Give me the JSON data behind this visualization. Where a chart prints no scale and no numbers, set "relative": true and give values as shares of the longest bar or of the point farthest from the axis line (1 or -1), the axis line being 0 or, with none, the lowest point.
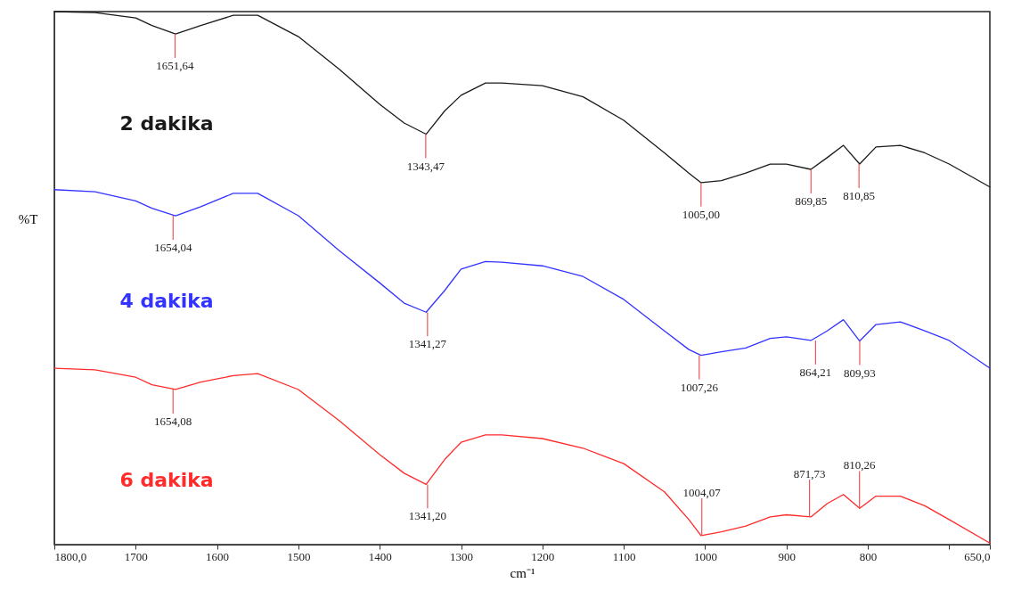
{
  "chart_data": {
    "type": "line",
    "relative": true,
    "xlabel": "cm⁻¹",
    "ylabel": "%T",
    "xlim": [
      1800,
      650
    ],
    "xticks": [
      {
        "value": 1800,
        "label": "1800,0"
      },
      1700,
      1600,
      1500,
      1400,
      1300,
      1200,
      1100,
      1000,
      900,
      800,
      {
        "value": 700,
        "label": null
      },
      {
        "value": 650,
        "label": "650,0"
      }
    ],
    "grid": false,
    "legend": false,
    "x": [
      1800,
      1750,
      1700,
      1680,
      1651,
      1620,
      1580,
      1550,
      1500,
      1450,
      1400,
      1370,
      1343,
      1320,
      1300,
      1270,
      1250,
      1200,
      1150,
      1100,
      1050,
      1020,
      1005,
      980,
      950,
      920,
      900,
      870,
      850,
      830,
      810,
      790,
      760,
      730,
      700,
      650
    ],
    "series": [
      {
        "name": "2 dakika",
        "color": "#1a1a1a",
        "values": [
          1.0,
          0.998,
          0.988,
          0.974,
          0.958,
          0.974,
          0.993,
          0.993,
          0.953,
          0.892,
          0.826,
          0.791,
          0.77,
          0.814,
          0.843,
          0.866,
          0.866,
          0.861,
          0.84,
          0.796,
          0.735,
          0.697,
          0.679,
          0.683,
          0.697,
          0.714,
          0.714,
          0.704,
          0.726,
          0.749,
          0.714,
          0.746,
          0.749,
          0.735,
          0.714,
          0.671
        ]
      },
      {
        "name": "4 dakika",
        "color": "#3333ff",
        "values": [
          0.666,
          0.662,
          0.645,
          0.631,
          0.617,
          0.634,
          0.659,
          0.659,
          0.617,
          0.552,
          0.491,
          0.453,
          0.436,
          0.477,
          0.517,
          0.531,
          0.53,
          0.523,
          0.503,
          0.46,
          0.401,
          0.366,
          0.355,
          0.362,
          0.369,
          0.387,
          0.39,
          0.383,
          0.401,
          0.422,
          0.382,
          0.413,
          0.418,
          0.401,
          0.383,
          0.331
        ]
      },
      {
        "name": "6 dakika",
        "color": "#ff2a2a",
        "values": [
          0.331,
          0.328,
          0.314,
          0.3,
          0.291,
          0.305,
          0.317,
          0.321,
          0.291,
          0.233,
          0.169,
          0.134,
          0.113,
          0.16,
          0.192,
          0.206,
          0.206,
          0.199,
          0.181,
          0.152,
          0.099,
          0.047,
          0.017,
          0.024,
          0.035,
          0.052,
          0.056,
          0.052,
          0.077,
          0.094,
          0.068,
          0.091,
          0.091,
          0.073,
          0.047,
          0.003
        ]
      }
    ],
    "annotations": [
      {
        "text": "1651,64",
        "x": 1651.64,
        "y": 0.958
      },
      {
        "text": "1343,47",
        "x": 1343.47,
        "y": 0.77
      },
      {
        "text": "1005,00",
        "x": 1005.0,
        "y": 0.679
      },
      {
        "text": "869,85",
        "x": 869.85,
        "y": 0.704
      },
      {
        "text": "810,85",
        "x": 810.85,
        "y": 0.714
      },
      {
        "text": "1654,04",
        "x": 1654.04,
        "y": 0.617
      },
      {
        "text": "1341,27",
        "x": 1341.27,
        "y": 0.436
      },
      {
        "text": "1007,26",
        "x": 1007.26,
        "y": 0.355
      },
      {
        "text": "864,21",
        "x": 864.21,
        "y": 0.383
      },
      {
        "text": "809,93",
        "x": 809.93,
        "y": 0.382
      },
      {
        "text": "1654,08",
        "x": 1654.08,
        "y": 0.291
      },
      {
        "text": "1341,20",
        "x": 1341.2,
        "y": 0.113
      },
      {
        "text": "1004,07",
        "x": 1004.07,
        "y": 0.017
      },
      {
        "text": "871,73",
        "x": 871.73,
        "y": 0.052
      },
      {
        "text": "810,26",
        "x": 810.26,
        "y": 0.068
      }
    ]
  }
}
